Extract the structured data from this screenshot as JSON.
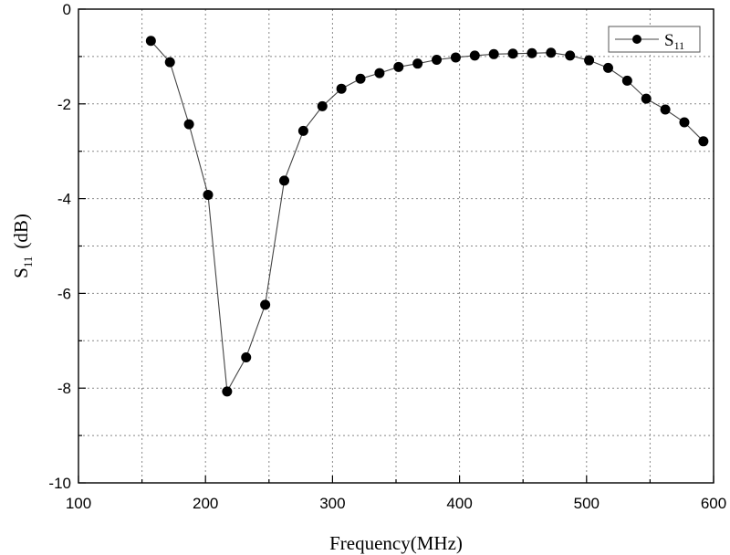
{
  "chart_data": {
    "type": "line",
    "xlabel": "Frequency(MHz)",
    "ylabel": {
      "main": "S",
      "sub": "11",
      "unit": "(dB)"
    },
    "xlim": [
      100,
      600
    ],
    "ylim": [
      -10,
      0
    ],
    "xticks": [
      100,
      200,
      300,
      400,
      500,
      600
    ],
    "yticks": [
      0,
      -2,
      -4,
      -6,
      -8,
      -10
    ],
    "xtick_labels": [
      "100",
      "200",
      "300",
      "400",
      "500",
      "600"
    ],
    "ytick_labels": [
      "0",
      "-2",
      "-4",
      "-6",
      "-8",
      "-10"
    ],
    "grid": true,
    "legend_position": "top-right",
    "series": [
      {
        "name": "S",
        "name_sub": "11",
        "color": "#000000",
        "marker": "circle",
        "x": [
          157,
          172,
          187,
          202,
          217,
          232,
          247,
          262,
          277,
          292,
          307,
          322,
          337,
          352,
          367,
          382,
          397,
          412,
          427,
          442,
          457,
          472,
          487,
          502,
          517,
          532,
          547,
          562,
          577,
          592
        ],
        "y": [
          -0.67,
          -1.12,
          -2.43,
          -3.92,
          -8.07,
          -7.35,
          -6.24,
          -3.62,
          -2.57,
          -2.05,
          -1.68,
          -1.47,
          -1.35,
          -1.22,
          -1.15,
          -1.07,
          -1.02,
          -0.98,
          -0.95,
          -0.94,
          -0.93,
          -0.92,
          -0.98,
          -1.08,
          -1.24,
          -1.51,
          -1.89,
          -2.12,
          -2.39,
          -2.79
        ]
      }
    ]
  }
}
